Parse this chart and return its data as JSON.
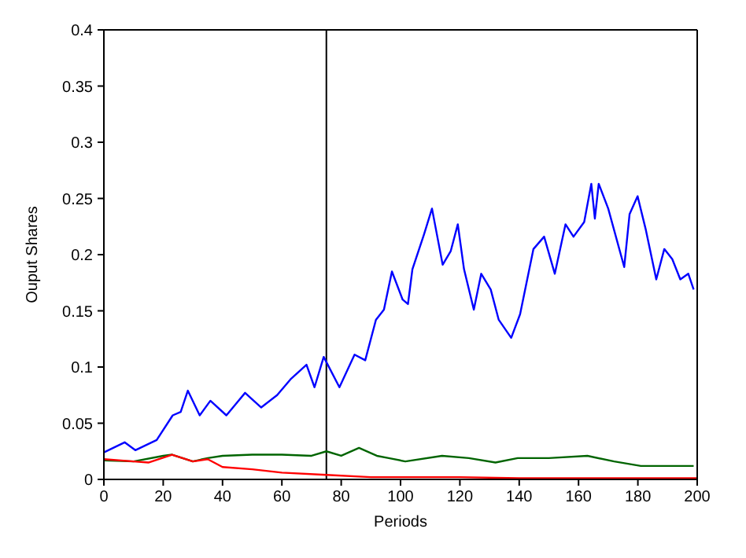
{
  "chart_data": {
    "type": "line",
    "xlabel": "Periods",
    "ylabel": "Ouput Shares",
    "xlim": [
      0,
      200
    ],
    "ylim": [
      0,
      0.4
    ],
    "xticks": [
      0,
      20,
      40,
      60,
      80,
      100,
      120,
      140,
      160,
      180,
      200
    ],
    "yticks": [
      0,
      0.05,
      0.1,
      0.15,
      0.2,
      0.25,
      0.3,
      0.35,
      0.4
    ],
    "legend": false,
    "marker": "none",
    "line_style": "solid",
    "ref_lines": [
      {
        "axis": "x",
        "value": 75,
        "color": "#000000"
      }
    ],
    "series": [
      {
        "color": "#0000ff",
        "x": [
          0,
          7,
          10.6,
          17.8,
          23.2,
          25.9,
          28.3,
          32.3,
          35.9,
          41.3,
          47.6,
          53,
          58.4,
          62.9,
          68.3,
          71,
          74.1,
          79.4,
          84.5,
          88.1,
          91.7,
          94.4,
          97.1,
          100.7,
          102.5,
          104,
          107.9,
          110.6,
          114.2,
          116.9,
          119.3,
          121.4,
          124.7,
          127.2,
          130.4,
          133.1,
          137.3,
          140.3,
          144.8,
          148.4,
          152,
          155.6,
          158.3,
          161.9,
          164.3,
          165.5,
          166.8,
          170,
          175.4,
          177.2,
          179.9,
          182.6,
          186.2,
          188.9,
          191.6,
          194.3,
          197,
          198.8
        ],
        "values": [
          0.024,
          0.033,
          0.026,
          0.035,
          0.057,
          0.06,
          0.079,
          0.057,
          0.07,
          0.057,
          0.077,
          0.064,
          0.075,
          0.089,
          0.102,
          0.082,
          0.109,
          0.082,
          0.111,
          0.106,
          0.142,
          0.151,
          0.185,
          0.16,
          0.156,
          0.187,
          0.218,
          0.241,
          0.191,
          0.203,
          0.227,
          0.187,
          0.151,
          0.183,
          0.169,
          0.142,
          0.126,
          0.147,
          0.205,
          0.216,
          0.183,
          0.227,
          0.216,
          0.229,
          0.263,
          0.232,
          0.263,
          0.241,
          0.189,
          0.236,
          0.252,
          0.223,
          0.178,
          0.205,
          0.196,
          0.178,
          0.183,
          0.169
        ]
      },
      {
        "color": "#006400",
        "x": [
          0,
          10,
          20,
          23,
          30,
          35,
          40,
          50,
          60,
          70,
          75,
          80,
          86,
          92,
          96,
          101.6,
          114,
          123,
          132,
          139.5,
          150,
          163,
          172,
          181,
          198.8
        ],
        "values": [
          0.017,
          0.016,
          0.021,
          0.022,
          0.016,
          0.019,
          0.021,
          0.022,
          0.022,
          0.021,
          0.025,
          0.021,
          0.028,
          0.021,
          0.019,
          0.016,
          0.021,
          0.019,
          0.015,
          0.019,
          0.019,
          0.021,
          0.016,
          0.012,
          0.012
        ]
      },
      {
        "color": "#ff0000",
        "x": [
          0,
          10,
          15,
          23,
          30,
          35,
          40,
          50,
          60,
          75,
          90,
          100,
          120,
          140,
          160,
          180,
          200
        ],
        "values": [
          0.018,
          0.016,
          0.015,
          0.022,
          0.016,
          0.018,
          0.011,
          0.009,
          0.006,
          0.004,
          0.002,
          0.002,
          0.002,
          0.001,
          0.001,
          0.001,
          0.001
        ]
      }
    ]
  }
}
